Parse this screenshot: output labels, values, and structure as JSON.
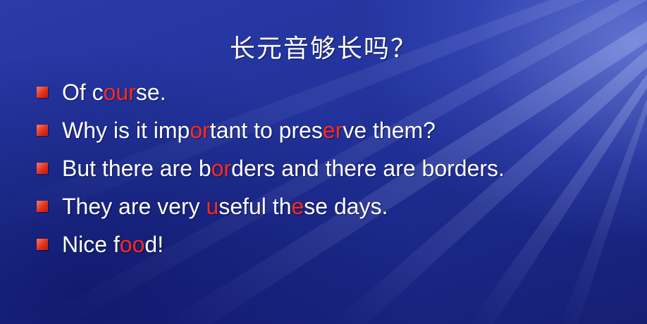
{
  "slide": {
    "title": "长元音够长吗？",
    "bullets": [
      {
        "segments": [
          {
            "text": "Of c",
            "highlight": false
          },
          {
            "text": "our",
            "highlight": true
          },
          {
            "text": "se.",
            "highlight": false
          }
        ]
      },
      {
        "segments": [
          {
            "text": "Why is it imp",
            "highlight": false
          },
          {
            "text": "or",
            "highlight": true
          },
          {
            "text": "tant to pres",
            "highlight": false
          },
          {
            "text": "er",
            "highlight": true
          },
          {
            "text": "ve them?",
            "highlight": false
          }
        ]
      },
      {
        "segments": [
          {
            "text": "But there are b",
            "highlight": false
          },
          {
            "text": "or",
            "highlight": true
          },
          {
            "text": "ders and there are borders.",
            "highlight": false
          }
        ]
      },
      {
        "segments": [
          {
            "text": "They are very ",
            "highlight": false
          },
          {
            "text": "u",
            "highlight": true
          },
          {
            "text": "seful th",
            "highlight": false
          },
          {
            "text": "e",
            "highlight": true
          },
          {
            "text": "se days.",
            "highlight": false
          }
        ]
      },
      {
        "segments": [
          {
            "text": "Nice f",
            "highlight": false
          },
          {
            "text": "oo",
            "highlight": true
          },
          {
            "text": "d!",
            "highlight": false
          }
        ]
      }
    ]
  },
  "colors": {
    "highlight": "#ff2a1f",
    "text": "#ffffff",
    "marker": "#e0321e",
    "background": "#1b2a8c"
  }
}
